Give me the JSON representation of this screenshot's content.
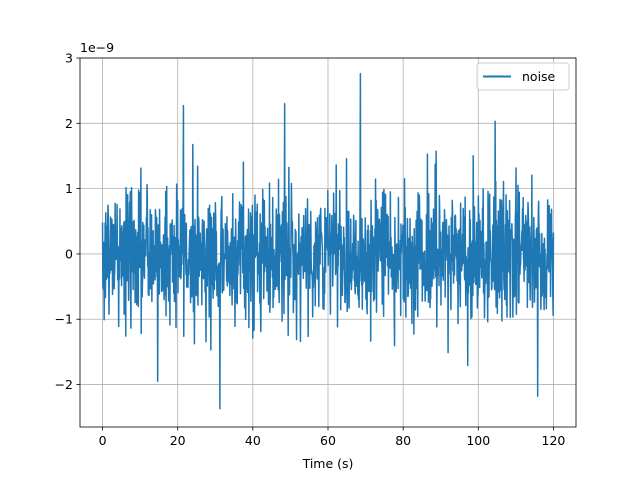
{
  "chart_data": {
    "type": "line",
    "title": "",
    "xlabel": "Time (s)",
    "ylabel": "",
    "y_offset_text": "1e−9",
    "y_scale_factor": 1e-09,
    "xlim": [
      -6,
      126
    ],
    "ylim": [
      -2.65e-09,
      3e-09
    ],
    "xticks": [
      0,
      20,
      40,
      60,
      80,
      100,
      120
    ],
    "yticks": [
      -2e-09,
      -1e-09,
      0,
      1e-09,
      2e-09,
      3e-09
    ],
    "xtick_labels": [
      "0",
      "20",
      "40",
      "60",
      "80",
      "100",
      "120"
    ],
    "ytick_labels": [
      "−2",
      "−1",
      "0",
      "1",
      "2",
      "3"
    ],
    "grid": true,
    "legend": "top-right",
    "series": [
      {
        "name": "noise",
        "color": "#1f77b4",
        "x_start": 0,
        "x_end": 120,
        "y_min": -2.37e-09,
        "y_max": 2.76e-09,
        "y_std": 5.2e-10
      }
    ]
  }
}
